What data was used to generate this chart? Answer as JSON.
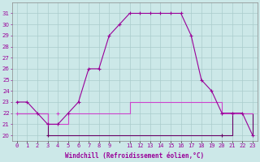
{
  "xlabel": "Windchill (Refroidissement éolien,°C)",
  "background_color": "#cce8e8",
  "grid_color": "#aacccc",
  "line_color1": "#990099",
  "line_color2": "#660066",
  "line_color3": "#cc44cc",
  "hours": [
    0,
    1,
    2,
    3,
    4,
    5,
    6,
    7,
    8,
    9,
    10,
    11,
    12,
    13,
    14,
    15,
    16,
    17,
    18,
    19,
    20,
    21,
    22,
    23
  ],
  "temp1": [
    23,
    23,
    22,
    21,
    21,
    22,
    23,
    26,
    26,
    29,
    30,
    31,
    31,
    31,
    31,
    31,
    31,
    29,
    25,
    24,
    22,
    22,
    22,
    20
  ],
  "temp2": [
    22,
    22,
    22,
    21,
    21,
    22,
    22,
    22,
    22,
    22,
    22,
    23,
    23,
    23,
    23,
    23,
    23,
    23,
    23,
    23,
    22,
    22,
    22,
    22
  ],
  "temp3": [
    22,
    22,
    22,
    20,
    20,
    20,
    20,
    20,
    20,
    20,
    20,
    20,
    20,
    20,
    20,
    20,
    20,
    20,
    20,
    20,
    20,
    22,
    22,
    20
  ],
  "ylim": [
    19.5,
    32
  ],
  "xlim": [
    -0.5,
    23.5
  ],
  "yticks": [
    20,
    21,
    22,
    23,
    24,
    25,
    26,
    27,
    28,
    29,
    30,
    31
  ],
  "xticks": [
    0,
    1,
    2,
    3,
    4,
    5,
    6,
    7,
    8,
    9,
    10,
    11,
    12,
    13,
    14,
    15,
    16,
    17,
    18,
    19,
    20,
    21,
    22,
    23
  ],
  "xtick_labels": [
    "0",
    "1",
    "2",
    "3",
    "4",
    "5",
    "6",
    "7",
    "8",
    "9",
    "",
    "11",
    "12",
    "13",
    "14",
    "15",
    "16",
    "17",
    "18",
    "19",
    "20",
    "21",
    "22",
    "23"
  ]
}
